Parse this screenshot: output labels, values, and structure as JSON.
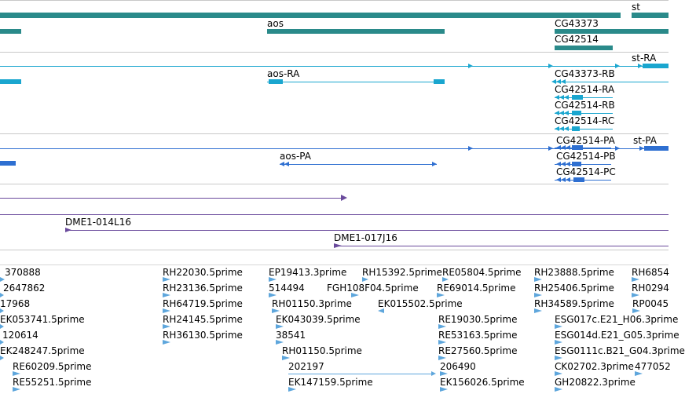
{
  "colors": {
    "gene": "#2a8a8a",
    "transcript": "#1aa6cf",
    "protein": "#2e6fd1",
    "clone": "#6a4a9c",
    "est": "#5ea6dc",
    "divider": "#c8c8c8"
  },
  "tracks": {
    "genes": {
      "labels": [
        "st",
        "aos",
        "CG43373",
        "CG42514"
      ]
    },
    "transcripts": {
      "labels": [
        "st-RA",
        "aos-RA",
        "CG43373-RB",
        "CG42514-RA",
        "CG42514-RB",
        "CG42514-RC"
      ]
    },
    "proteins": {
      "labels": [
        "st-PA",
        "aos-PA",
        "CG42514-PA",
        "CG42514-PB",
        "CG42514-PC"
      ]
    },
    "clones": {
      "labels": [
        "DME1-014L16",
        "DME1-017J16"
      ]
    },
    "ests": {
      "labels": [
        "370888",
        "RH22030.5prime",
        "EP19413.3prime",
        "RH15392.5prime",
        "RE05804.5prime",
        "RH23888.5prime",
        "RH6854",
        "2647862",
        "RH23136.5prime",
        "514494",
        "FGH108F04.5prime",
        "RE69014.5prime",
        "RH25406.5prime",
        "RH0294",
        "17968",
        "RH64719.5prime",
        "RH01150.3prime",
        "EK015502.5prime",
        "RH34589.5prime",
        "RP0045",
        "EK053741.5prime",
        "RH24145.5prime",
        "EK043039.5prime",
        "RE19030.5prime",
        "ESG017c.E21_H06.3prime",
        "120614",
        "RH36130.5prime",
        "38541",
        "RE53163.5prime",
        "ESG014d.E21_G05.3prime",
        "EK248247.5prime",
        "RH01150.5prime",
        "RE27560.5prime",
        "ESG0111c.B21_G04.3prime",
        "RE60209.5prime",
        "202197",
        "206490",
        "CK02702.3prime",
        "477052",
        "RE55251.5prime",
        "EK147159.5prime",
        "EK156026.5prime",
        "GH20822.3prime"
      ]
    }
  }
}
